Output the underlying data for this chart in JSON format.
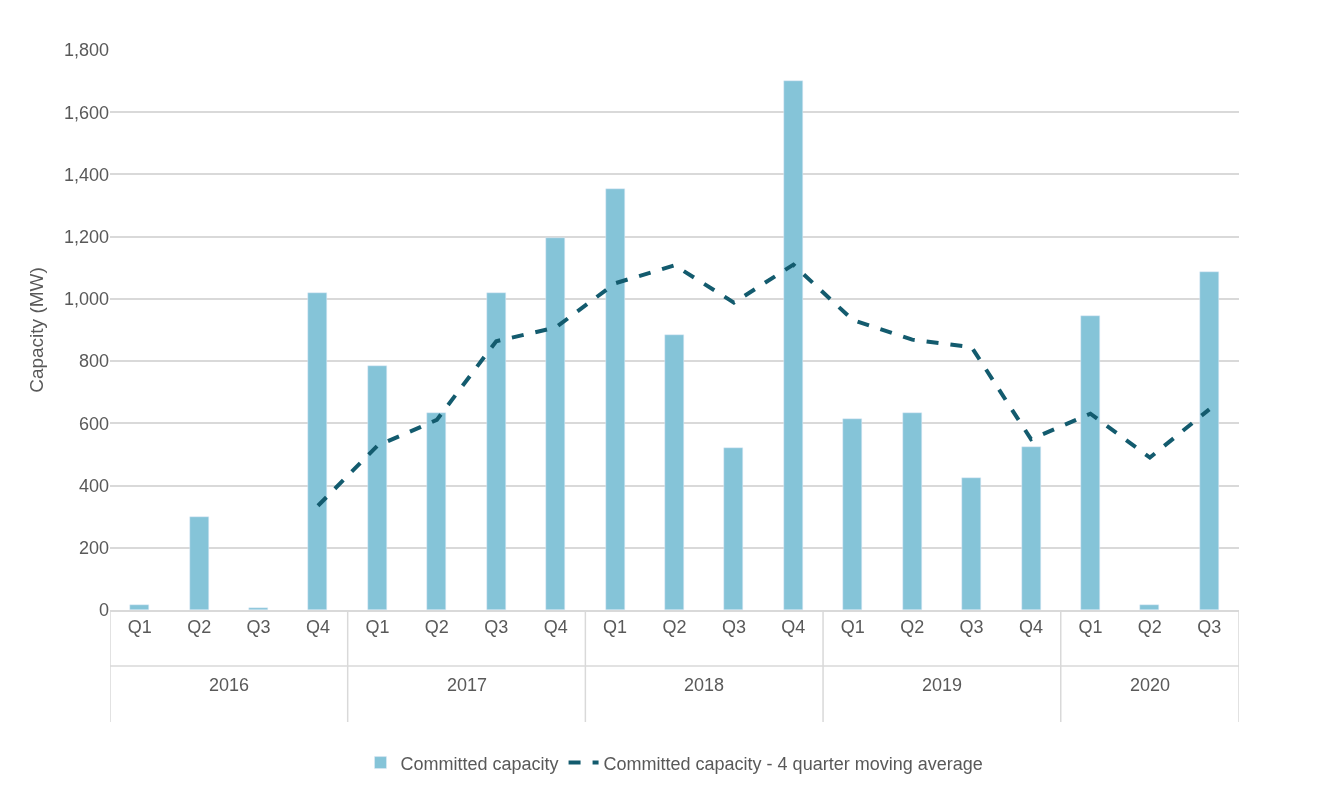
{
  "chart_data": {
    "type": "bar",
    "ylabel": "Capacity (MW)",
    "categories": [
      "Q1",
      "Q2",
      "Q3",
      "Q4",
      "Q1",
      "Q2",
      "Q3",
      "Q4",
      "Q1",
      "Q2",
      "Q3",
      "Q4",
      "Q1",
      "Q2",
      "Q3",
      "Q4",
      "Q1",
      "Q2",
      "Q3"
    ],
    "annotations": [
      "2016",
      "2017",
      "2018",
      "2019",
      "2020"
    ],
    "series": [
      {
        "name": "Committed capacity",
        "color": "#85c4d8",
        "values": [
          15,
          300,
          8,
          1020,
          785,
          632,
          1020,
          1195,
          1352,
          884,
          520,
          1700,
          615,
          632,
          424,
          525,
          945,
          15,
          1088
        ]
      },
      {
        "name": "Committed capacity - 4 quarter moving average",
        "type": "line",
        "color": "#135b6e",
        "line_style": "dashed",
        "values": [
          null,
          null,
          null,
          335,
          528,
          611,
          864,
          908,
          1050,
          1108,
          988,
          1110,
          932,
          869,
          845,
          549,
          631,
          490,
          645
        ]
      }
    ],
    "ylim": [
      0,
      1800
    ],
    "yticks": [
      0,
      {
        "value": 200,
        "label": "200"
      },
      {
        "value": 400,
        "label": "400"
      },
      {
        "value": 600,
        "label": "600"
      },
      {
        "value": 800,
        "label": "800"
      },
      {
        "value": 1000,
        "label": "1,000"
      },
      {
        "value": 1200,
        "label": "1,200"
      },
      {
        "value": 1400,
        "label": "1,400"
      },
      {
        "value": 1600,
        "label": "1,600"
      },
      {
        "value": 1800,
        "label": "1,800"
      }
    ],
    "grid": "y",
    "legend": "bottom"
  }
}
